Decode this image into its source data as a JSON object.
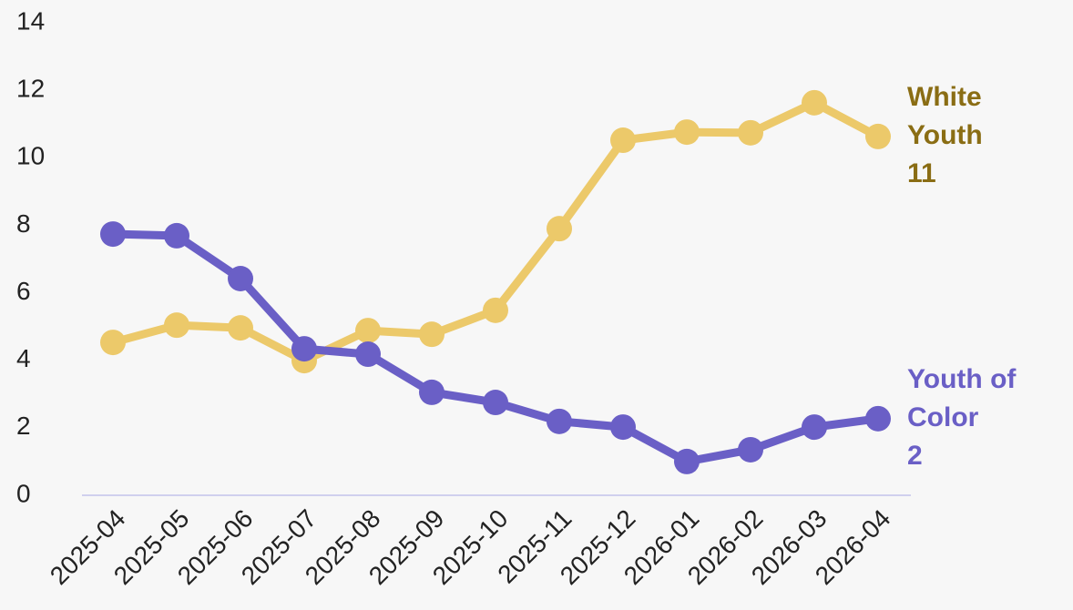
{
  "chart_data": {
    "type": "line",
    "categories": [
      "2025-04",
      "2025-05",
      "2025-06",
      "2025-07",
      "2025-08",
      "2025-09",
      "2025-10",
      "2025-11",
      "2025-12",
      "2026-01",
      "2026-02",
      "2026-03",
      "2026-04"
    ],
    "series": [
      {
        "name": "White Youth",
        "color": "#ecc96a",
        "label_color": "#8a6d14",
        "values": [
          4.53,
          5.04,
          4.96,
          3.99,
          4.88,
          4.77,
          5.48,
          7.9,
          10.52,
          10.76,
          10.74,
          11.63,
          10.63
        ],
        "value_labels": [
          null,
          null,
          null,
          null,
          null,
          null,
          null,
          null,
          null,
          null,
          null,
          null,
          "11"
        ]
      },
      {
        "name": "Youth of Color",
        "color": "#6a5fc6",
        "label_color": "#6a5fc6",
        "values": [
          7.74,
          7.69,
          6.42,
          4.34,
          4.18,
          3.05,
          2.75,
          2.19,
          2.02,
          1.0,
          1.35,
          2.02,
          2.27
        ],
        "value_labels": [
          null,
          null,
          null,
          null,
          null,
          null,
          null,
          null,
          null,
          null,
          null,
          null,
          "2"
        ]
      }
    ],
    "ylim": [
      0,
      14
    ],
    "yticks": [
      0,
      2,
      4,
      6,
      8,
      10,
      12,
      14
    ],
    "grid": false
  }
}
